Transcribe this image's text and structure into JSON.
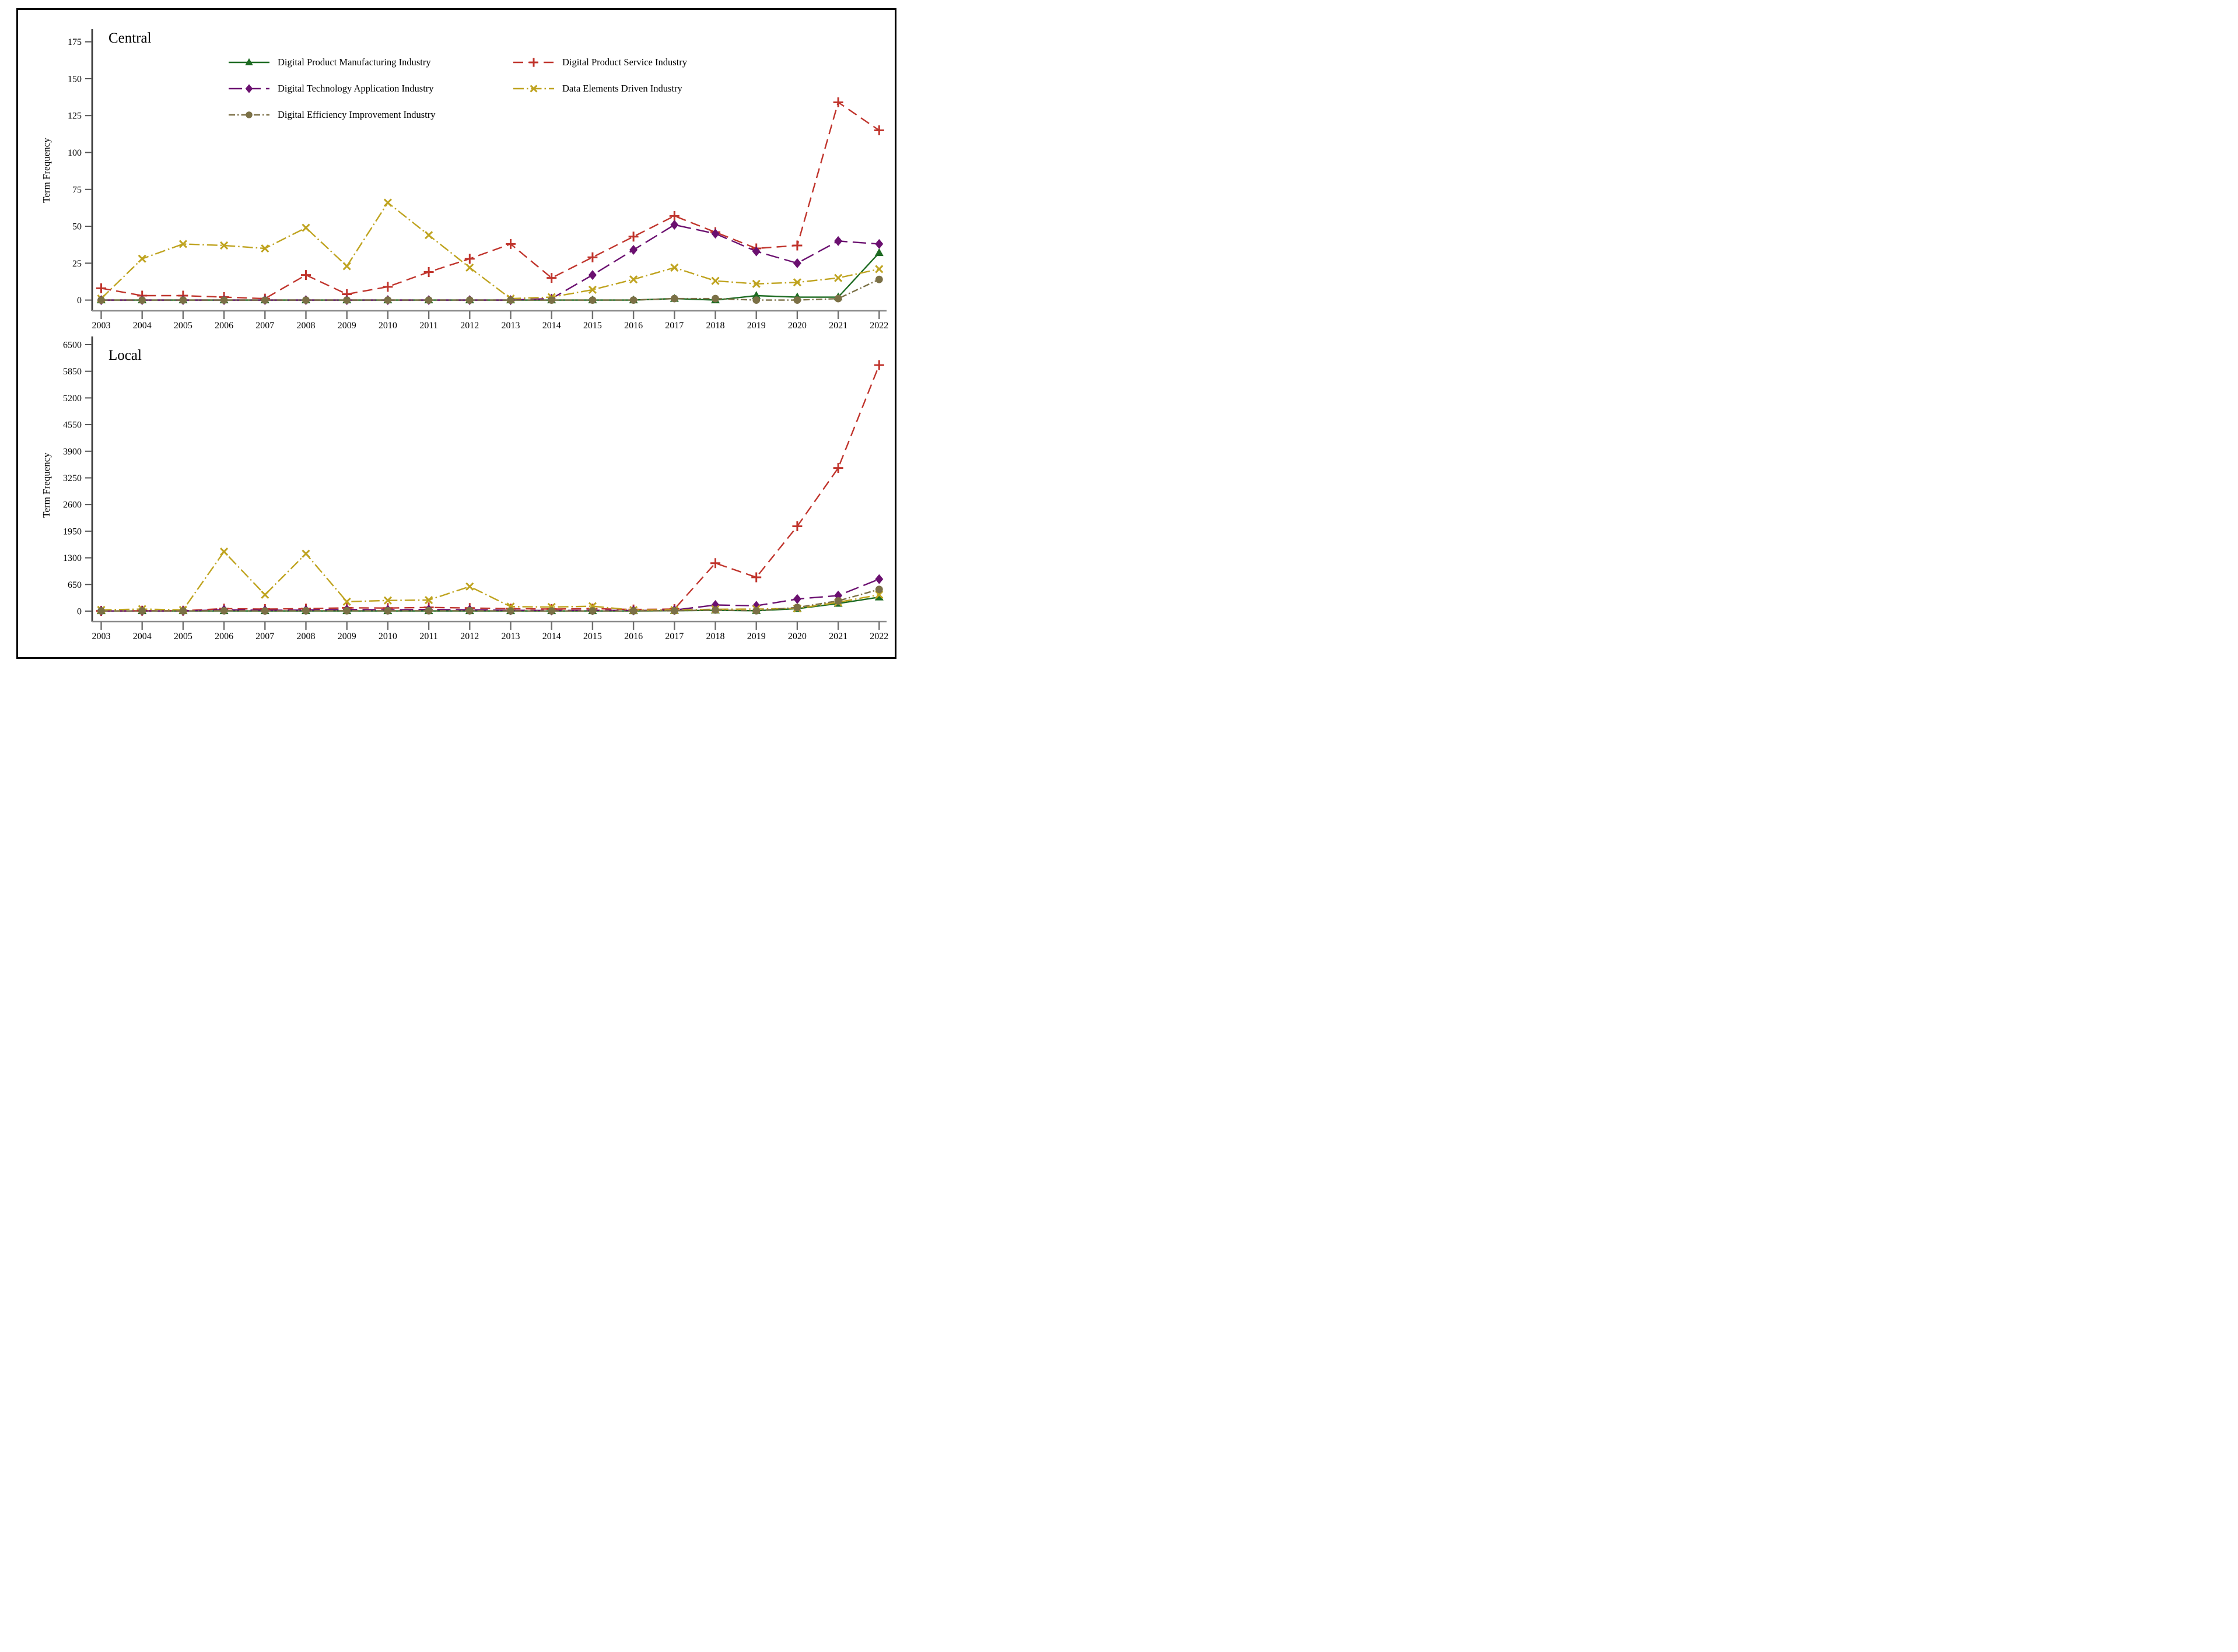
{
  "figure": {
    "border_color": "#000000",
    "background": "#ffffff"
  },
  "chart_data": [
    {
      "type": "line",
      "title": "Central",
      "ylabel": "Term Frequency",
      "xlabel": "",
      "ylim": [
        0,
        175
      ],
      "yticks": [
        0,
        25,
        50,
        75,
        100,
        125,
        150,
        175
      ],
      "grid": "off",
      "legend_position": "inside-top, two columns",
      "x": [
        "2003",
        "2004",
        "2005",
        "2006",
        "2007",
        "2008",
        "2009",
        "2010",
        "2011",
        "2012",
        "2013",
        "2014",
        "2015",
        "2016",
        "2017",
        "2018",
        "2019",
        "2020",
        "2021",
        "2022"
      ],
      "series": [
        {
          "name": "Digital Product Manufacturing Industry",
          "color": "#1d6b22",
          "marker": "triangle",
          "dash": "solid",
          "values": [
            0,
            0,
            0,
            0,
            0,
            0,
            0,
            0,
            0,
            0,
            0,
            0,
            0,
            0,
            1,
            0,
            3,
            2,
            2,
            32
          ]
        },
        {
          "name": "Digital Product Service Industry",
          "color": "#c0342c",
          "marker": "plus",
          "dash": "dash",
          "values": [
            8,
            3,
            3,
            2,
            1,
            17,
            4,
            9,
            19,
            28,
            38,
            15,
            29,
            43,
            57,
            46,
            35,
            37,
            134,
            115
          ]
        },
        {
          "name": "Digital Technology Application Industry",
          "color": "#6b1070",
          "marker": "diamond",
          "dash": "longdash",
          "values": [
            0,
            0,
            0,
            0,
            0,
            0,
            0,
            0,
            0,
            0,
            0,
            1,
            17,
            34,
            51,
            45,
            33,
            25,
            40,
            38
          ]
        },
        {
          "name": "Data Elements Driven Industry",
          "color": "#bfa31f",
          "marker": "x",
          "dash": "dashdot",
          "values": [
            1,
            28,
            38,
            37,
            35,
            49,
            23,
            66,
            44,
            22,
            1,
            2,
            7,
            14,
            22,
            13,
            11,
            12,
            15,
            21
          ]
        },
        {
          "name": "Digital Efficiency Improvement Industry",
          "color": "#7b7046",
          "marker": "circle",
          "dash": "shortdashdot",
          "values": [
            0,
            0,
            0,
            0,
            0,
            0,
            0,
            0,
            0,
            0,
            0,
            0,
            0,
            0,
            1,
            1,
            0,
            0,
            1,
            14
          ]
        }
      ]
    },
    {
      "type": "line",
      "title": "Local",
      "ylabel": "Term Frequency",
      "xlabel": "",
      "ylim": [
        0,
        6500
      ],
      "yticks": [
        0,
        650,
        1300,
        1950,
        2600,
        3250,
        3900,
        4550,
        5200,
        5850,
        6500
      ],
      "grid": "off",
      "legend_position": "none",
      "x": [
        "2003",
        "2004",
        "2005",
        "2006",
        "2007",
        "2008",
        "2009",
        "2010",
        "2011",
        "2012",
        "2013",
        "2014",
        "2015",
        "2016",
        "2017",
        "2018",
        "2019",
        "2020",
        "2021",
        "2022"
      ],
      "series": [
        {
          "name": "Digital Product Manufacturing Industry",
          "color": "#1d6b22",
          "marker": "triangle",
          "dash": "solid",
          "values": [
            5,
            5,
            5,
            5,
            5,
            5,
            5,
            5,
            5,
            5,
            5,
            5,
            5,
            5,
            10,
            20,
            10,
            60,
            185,
            340
          ]
        },
        {
          "name": "Digital Product Service Industry",
          "color": "#c0342c",
          "marker": "plus",
          "dash": "dash",
          "values": [
            5,
            10,
            10,
            60,
            50,
            60,
            80,
            75,
            90,
            75,
            60,
            50,
            60,
            40,
            50,
            1170,
            825,
            2070,
            3490,
            6000
          ]
        },
        {
          "name": "Digital Technology Application Industry",
          "color": "#6b1070",
          "marker": "diamond",
          "dash": "longdash",
          "values": [
            5,
            5,
            5,
            30,
            20,
            25,
            40,
            30,
            40,
            30,
            20,
            15,
            20,
            15,
            25,
            150,
            130,
            295,
            380,
            780
          ]
        },
        {
          "name": "Data Elements Driven Industry",
          "color": "#bfa31f",
          "marker": "x",
          "dash": "dashdot",
          "values": [
            30,
            50,
            30,
            1450,
            400,
            1400,
            230,
            260,
            270,
            600,
            110,
            100,
            120,
            25,
            25,
            45,
            50,
            65,
            215,
            400
          ]
        },
        {
          "name": "Digital Efficiency Improvement Industry",
          "color": "#7b7046",
          "marker": "circle",
          "dash": "shortdashdot",
          "values": [
            5,
            5,
            5,
            10,
            5,
            10,
            10,
            10,
            10,
            10,
            5,
            5,
            5,
            5,
            10,
            25,
            10,
            90,
            250,
            530
          ]
        }
      ]
    }
  ],
  "legend": {
    "column1_series_indices": [
      0,
      2,
      4
    ],
    "column2_series_indices": [
      1,
      3
    ]
  }
}
